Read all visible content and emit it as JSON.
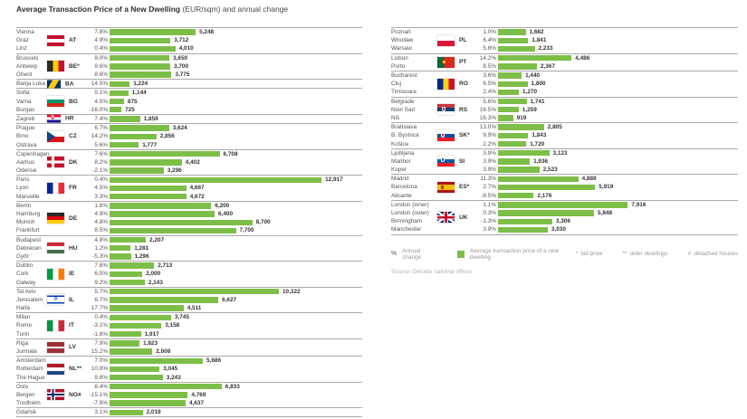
{
  "title": {
    "bold": "Average Transaction Price of a New Dwelling",
    "regular": "(EUR/sqm) and annual change"
  },
  "legend": {
    "pct_symbol": "%",
    "pct_label": "Annual change",
    "bar_label": "Average transaction price of a new dwelling",
    "notes": [
      {
        "symbol": "*",
        "label": "bid price"
      },
      {
        "symbol": "**",
        "label": "older dwellings"
      },
      {
        "symbol": "#",
        "label": "detached houses"
      }
    ],
    "source": "Source: Deloitte national offices"
  },
  "colors": {
    "bar_green": "#7DBE49",
    "text_dark": "#333333",
    "text_gray": "#555555",
    "legend_gray": "#9a9a9a",
    "line_gray": "#a9a9a9"
  },
  "chart_data": {
    "type": "bar",
    "title": "Average Transaction Price of a New Dwelling (EUR/sqm) and annual change",
    "unit": "EUR/sqm",
    "value_axis_max": 13000,
    "columns": [
      {
        "groups": [
          {
            "code": "AT",
            "flag": "at",
            "rows": [
              {
                "city": "Vienna",
                "change_pct": 7.8,
                "price": 5248
              },
              {
                "city": "Graz",
                "change_pct": 4.9,
                "price": 3712
              },
              {
                "city": "Linz",
                "change_pct": 0.4,
                "price": 4010
              }
            ]
          },
          {
            "code": "BE*",
            "flag": "be",
            "rows": [
              {
                "city": "Brussels",
                "change_pct": 9.0,
                "price": 3650
              },
              {
                "city": "Antwerp",
                "change_pct": 9.6,
                "price": 3700
              },
              {
                "city": "Ghent",
                "change_pct": 8.6,
                "price": 3775
              }
            ]
          },
          {
            "code": "BA",
            "flag": "ba",
            "rows": [
              {
                "city": "Banja Luka",
                "change_pct": 14.5,
                "price": 1224
              }
            ]
          },
          {
            "code": "BG",
            "flag": "bg",
            "rows": [
              {
                "city": "Sofia",
                "change_pct": 5.1,
                "price": 1144
              },
              {
                "city": "Varna",
                "change_pct": 4.5,
                "price": 875
              },
              {
                "city": "Burgas",
                "change_pct": -16.0,
                "price": 725
              }
            ]
          },
          {
            "code": "HR",
            "flag": "hr",
            "rows": [
              {
                "city": "Zagreb",
                "change_pct": 7.4,
                "price": 1859
              }
            ]
          },
          {
            "code": "CZ",
            "flag": "cz",
            "rows": [
              {
                "city": "Prague",
                "change_pct": 6.7,
                "price": 3624
              },
              {
                "city": "Brno",
                "change_pct": 14.2,
                "price": 2856
              },
              {
                "city": "Ostrava",
                "change_pct": 5.6,
                "price": 1777
              }
            ]
          },
          {
            "code": "DK",
            "flag": "dk",
            "rows": [
              {
                "city": "Copenhagen",
                "change_pct": 7.6,
                "price": 6708
              },
              {
                "city": "Aarhus",
                "change_pct": 8.2,
                "price": 4402
              },
              {
                "city": "Odense",
                "change_pct": -2.1,
                "price": 3296
              }
            ]
          },
          {
            "code": "FR",
            "flag": "fr",
            "rows": [
              {
                "city": "Paris",
                "change_pct": 0.4,
                "price": 12917
              },
              {
                "city": "Lyon",
                "change_pct": 4.5,
                "price": 4667
              },
              {
                "city": "Marseille",
                "change_pct": 3.3,
                "price": 4672
              }
            ]
          },
          {
            "code": "DE",
            "flag": "de",
            "rows": [
              {
                "city": "Berlin",
                "change_pct": 1.6,
                "price": 6200
              },
              {
                "city": "Hamburg",
                "change_pct": 4.9,
                "price": 6400
              },
              {
                "city": "Munich",
                "change_pct": 4.8,
                "price": 8700
              },
              {
                "city": "Frankfurt",
                "change_pct": 8.5,
                "price": 7700
              }
            ]
          },
          {
            "code": "HU",
            "flag": "hu",
            "rows": [
              {
                "city": "Budapest",
                "change_pct": 4.8,
                "price": 2207
              },
              {
                "city": "Debrecen",
                "change_pct": 1.2,
                "price": 1281
              },
              {
                "city": "Győr",
                "change_pct": -5.3,
                "price": 1296
              }
            ]
          },
          {
            "code": "IE",
            "flag": "ie",
            "rows": [
              {
                "city": "Dublin",
                "change_pct": 7.6,
                "price": 2713
              },
              {
                "city": "Cork",
                "change_pct": 6.5,
                "price": 2000
              },
              {
                "city": "Galway",
                "change_pct": 9.2,
                "price": 2143
              }
            ]
          },
          {
            "code": "IL",
            "flag": "il",
            "rows": [
              {
                "city": "Tel Aviv",
                "change_pct": 5.7,
                "price": 10322
              },
              {
                "city": "Jerusalem",
                "change_pct": 6.7,
                "price": 6627
              },
              {
                "city": "Haifa",
                "change_pct": 17.7,
                "price": 4511
              }
            ]
          },
          {
            "code": "IT",
            "flag": "it",
            "rows": [
              {
                "city": "Milan",
                "change_pct": 0.4,
                "price": 3745
              },
              {
                "city": "Rome",
                "change_pct": -3.1,
                "price": 3158
              },
              {
                "city": "Turin",
                "change_pct": -1.6,
                "price": 1917
              }
            ]
          },
          {
            "code": "LV",
            "flag": "lv",
            "rows": [
              {
                "city": "Riga",
                "change_pct": 7.9,
                "price": 1823
              },
              {
                "city": "Jurmala",
                "change_pct": 15.2,
                "price": 2608
              }
            ]
          },
          {
            "code": "NL**",
            "flag": "nl",
            "rows": [
              {
                "city": "Amsterdam",
                "change_pct": 7.0,
                "price": 5686
              },
              {
                "city": "Rotterdam",
                "change_pct": 10.8,
                "price": 3045
              },
              {
                "city": "The Hague",
                "change_pct": 9.8,
                "price": 3243
              }
            ]
          },
          {
            "code": "NO#",
            "flag": "no",
            "rows": [
              {
                "city": "Oslo",
                "change_pct": 8.4,
                "price": 6833
              },
              {
                "city": "Bergen",
                "change_pct": -15.1,
                "price": 4769
              },
              {
                "city": "Trodheim",
                "change_pct": -7.9,
                "price": 4637
              }
            ]
          },
          {
            "code": "",
            "flag": null,
            "rows": [
              {
                "city": "Gdańsk",
                "change_pct": 3.1,
                "price": 2019
              }
            ]
          }
        ]
      },
      {
        "groups": [
          {
            "code": "PL",
            "flag": "pl",
            "rows": [
              {
                "city": "Poznań",
                "change_pct": 1.0,
                "price": 1682
              },
              {
                "city": "Wrocław",
                "change_pct": 6.4,
                "price": 1841
              },
              {
                "city": "Warsaw",
                "change_pct": 5.6,
                "price": 2233
              }
            ]
          },
          {
            "code": "PT",
            "flag": "pt",
            "rows": [
              {
                "city": "Lisbon",
                "change_pct": 14.2,
                "price": 4486
              },
              {
                "city": "Porto",
                "change_pct": 8.5,
                "price": 2367
              }
            ]
          },
          {
            "code": "RO",
            "flag": "ro",
            "rows": [
              {
                "city": "Bucharest",
                "change_pct": 3.6,
                "price": 1440
              },
              {
                "city": "Cluj",
                "change_pct": 6.5,
                "price": 1800
              },
              {
                "city": "Timisoara",
                "change_pct": 2.4,
                "price": 1270
              }
            ]
          },
          {
            "code": "RS",
            "flag": "rs",
            "rows": [
              {
                "city": "Belgrade",
                "change_pct": 5.6,
                "price": 1741
              },
              {
                "city": "Novi Sad",
                "change_pct": 16.5,
                "price": 1259
              },
              {
                "city": "Niš",
                "change_pct": 16.3,
                "price": 919
              }
            ]
          },
          {
            "code": "SK*",
            "flag": "sk",
            "rows": [
              {
                "city": "Bratislava",
                "change_pct": 13.0,
                "price": 2805
              },
              {
                "city": "B. Bystrica",
                "change_pct": 9.9,
                "price": 1843
              },
              {
                "city": "Košice",
                "change_pct": 2.2,
                "price": 1720
              }
            ]
          },
          {
            "code": "SI",
            "flag": "si",
            "rows": [
              {
                "city": "Ljubljana",
                "change_pct": 3.9,
                "price": 3123
              },
              {
                "city": "Maribor",
                "change_pct": 3.9,
                "price": 1936
              },
              {
                "city": "Koper",
                "change_pct": 3.9,
                "price": 2523
              }
            ]
          },
          {
            "code": "ES*",
            "flag": "es",
            "rows": [
              {
                "city": "Madrid",
                "change_pct": 11.3,
                "price": 4889
              },
              {
                "city": "Barcelona",
                "change_pct": 2.7,
                "price": 5919
              },
              {
                "city": "Alicante",
                "change_pct": -8.5,
                "price": 2176
              }
            ]
          },
          {
            "code": "UK",
            "flag": "uk",
            "rows": [
              {
                "city": "London (inner)",
                "change_pct": 1.1,
                "price": 7916
              },
              {
                "city": "London (outer)",
                "change_pct": 0.3,
                "price": 5848
              },
              {
                "city": "Birmingham",
                "change_pct": -1.3,
                "price": 3306
              },
              {
                "city": "Manchester",
                "change_pct": 3.9,
                "price": 3030
              }
            ]
          }
        ]
      }
    ]
  }
}
